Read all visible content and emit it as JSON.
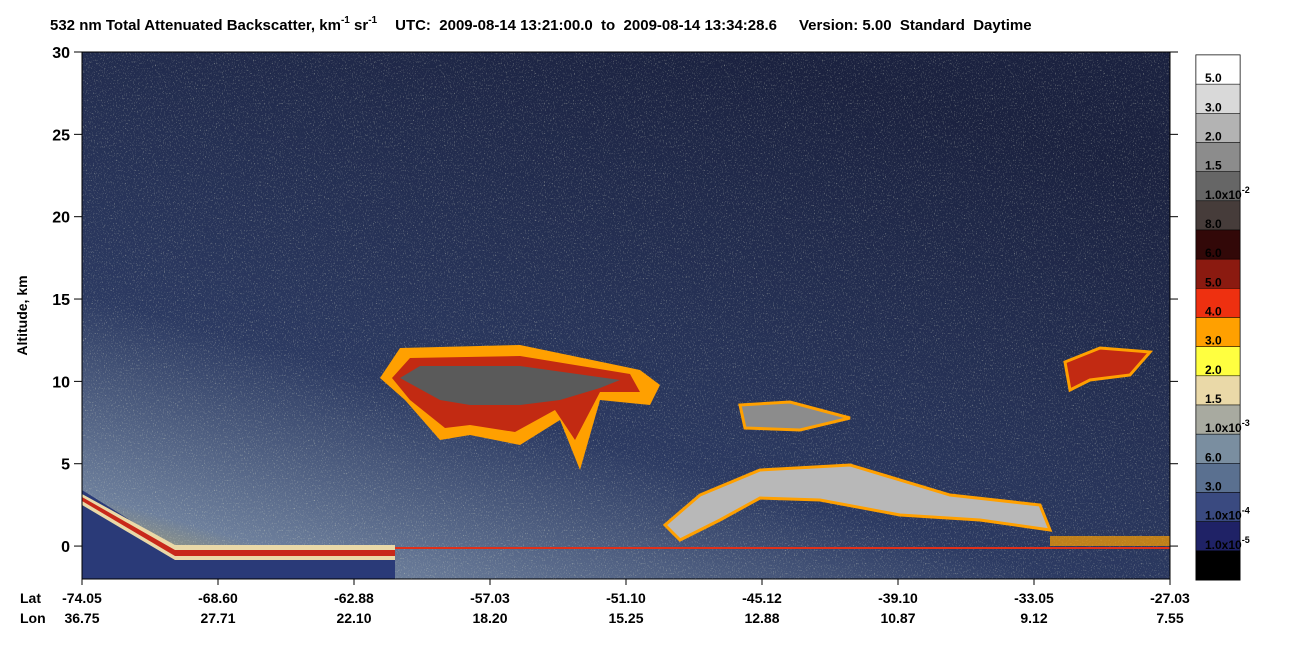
{
  "chart_data": {
    "type": "heatmap",
    "title_parts": [
      "532 nm Total Attenuated Backscatter, km",
      "-1",
      " sr",
      "-1",
      "UTC:  2009-08-14 13:21:00.0  to  2009-08-14 13:34:28.6",
      "Version: 5.00  Standard  Daytime"
    ],
    "y_label": "Altitude, km",
    "ylim": [
      -2,
      30
    ],
    "yticks": [
      0,
      5,
      10,
      15,
      20,
      25,
      30
    ],
    "x_rows": [
      {
        "name": "Lat",
        "labels": [
          "-74.05",
          "-68.60",
          "-62.88",
          "-57.03",
          "-51.10",
          "-45.12",
          "-39.10",
          "-33.05",
          "-27.03"
        ]
      },
      {
        "name": "Lon",
        "labels": [
          "36.75",
          "27.71",
          "22.10",
          "18.20",
          "15.25",
          "12.88",
          "10.87",
          "9.12",
          "7.55"
        ]
      }
    ],
    "colorbar": {
      "colors": [
        "#ffffff",
        "#d9d9d9",
        "#b3b3b3",
        "#8c8c8c",
        "#666666",
        "#463c3a",
        "#320808",
        "#8b1a10",
        "#ee3010",
        "#ffa000",
        "#ffff40",
        "#ead9a8",
        "#a8aaa0",
        "#7a8ea0",
        "#5a7090",
        "#3a4a80",
        "#1f2266",
        "#000000"
      ],
      "labels": [
        "5.0",
        "3.0",
        "2.0",
        "1.5",
        {
          "mantissa": "1.0x10",
          "exponent": "-2"
        },
        "8.0",
        "6.0",
        "5.0",
        "4.0",
        "3.0",
        "2.0",
        "1.5",
        {
          "mantissa": "1.0x10",
          "exponent": "-3"
        },
        "6.0",
        "3.0",
        {
          "mantissa": "1.0x10",
          "exponent": "-4"
        },
        {
          "mantissa": "1.0x10",
          "exponent": "-5"
        }
      ]
    }
  }
}
